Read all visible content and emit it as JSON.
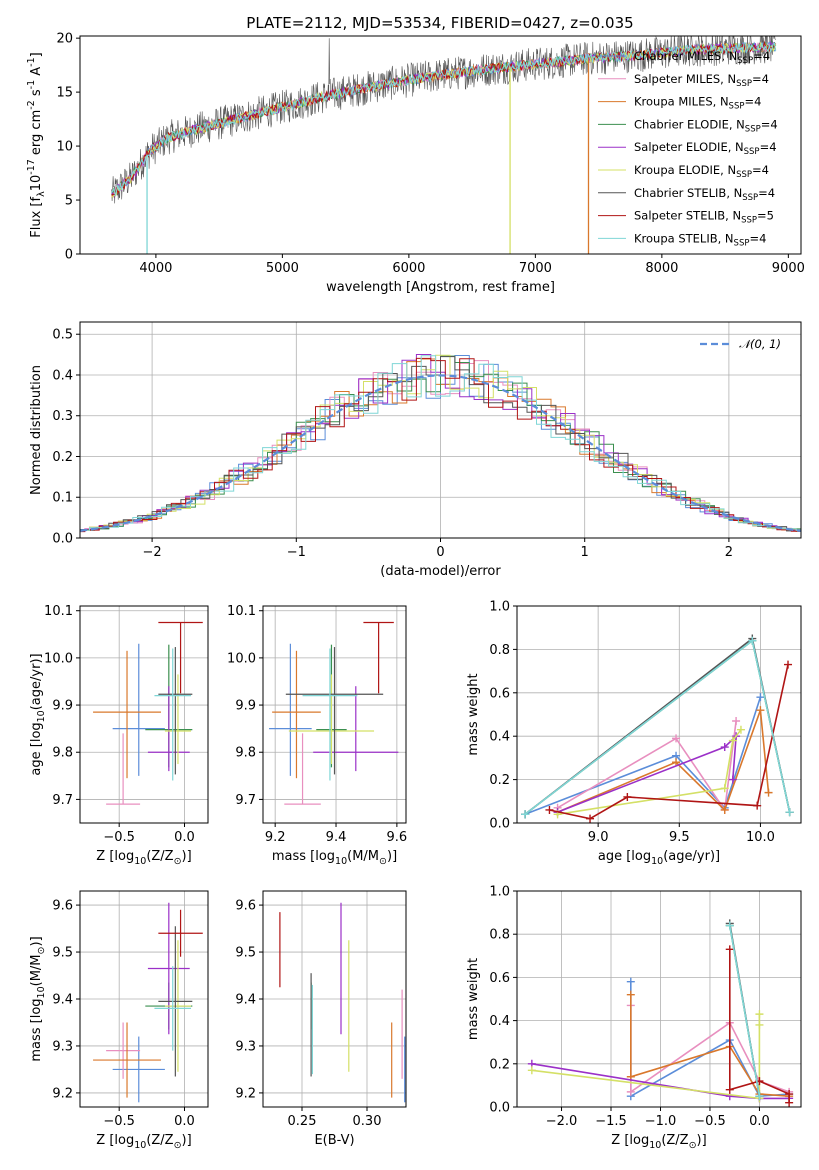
{
  "figure": {
    "title": "PLATE=2112, MJD=53534, FIBERID=0427, z=0.035"
  },
  "series_styles": [
    {
      "name": "Chabrier MILES, N$_{SSP}$=4",
      "legend_main": "Chabrier MILES, N",
      "legend_sub": "SSP",
      "legend_end": "=4",
      "color": "#5b8dd9"
    },
    {
      "name": "Salpeter MILES, N$_{SSP}$=4",
      "legend_main": "Salpeter MILES, N",
      "legend_sub": "SSP",
      "legend_end": "=4",
      "color": "#e88fbf"
    },
    {
      "name": "Kroupa MILES, N$_{SSP}$=4",
      "legend_main": "Kroupa MILES, N",
      "legend_sub": "SSP",
      "legend_end": "=4",
      "color": "#d9782c"
    },
    {
      "name": "Chabrier ELODIE, N$_{SSP}$=4",
      "legend_main": "Chabrier ELODIE, N",
      "legend_sub": "SSP",
      "legend_end": "=4",
      "color": "#3b8f4f"
    },
    {
      "name": "Salpeter ELODIE, N$_{SSP}$=4",
      "legend_main": "Salpeter ELODIE, N",
      "legend_sub": "SSP",
      "legend_end": "=4",
      "color": "#9b30c8"
    },
    {
      "name": "Kroupa ELODIE, N$_{SSP}$=4",
      "legend_main": "Kroupa ELODIE, N",
      "legend_sub": "SSP",
      "legend_end": "=4",
      "color": "#d4e066"
    },
    {
      "name": "Chabrier STELIB, N$_{SSP}$=4",
      "legend_main": "Chabrier STELIB, N",
      "legend_sub": "SSP",
      "legend_end": "=4",
      "color": "#555555"
    },
    {
      "name": "Salpeter STELIB, N$_{SSP}$=5",
      "legend_main": "Salpeter STELIB, N",
      "legend_sub": "SSP",
      "legend_end": "=5",
      "color": "#b01515"
    },
    {
      "name": "Kroupa STELIB, N$_{SSP}$=4",
      "legend_main": "Kroupa STELIB, N",
      "legend_sub": "SSP",
      "legend_end": "=4",
      "color": "#7fd6d6"
    }
  ],
  "chart_data": [
    {
      "id": "spectrum",
      "type": "line",
      "title": "PLATE=2112, MJD=53534, FIBERID=0427, z=0.035",
      "xlabel": "wavelength [Angstrom, rest frame]",
      "ylabel": "Flux [f$_\\lambda$10$^{-17}$ erg cm$^{-2}$ s$^{-1}$ A$^{-1}$]",
      "xlim": [
        3400,
        9100
      ],
      "ylim": [
        0,
        20.2
      ],
      "xticks": [
        4000,
        5000,
        6000,
        7000,
        8000,
        9000
      ],
      "yticks": [
        0,
        5,
        10,
        15,
        20
      ],
      "grid": false,
      "legend": "upper-right",
      "continuum": {
        "x": [
          3650,
          3800,
          3950,
          4100,
          4300,
          4600,
          5000,
          5400,
          5800,
          6200,
          6600,
          7000,
          7400,
          7800,
          8200,
          8600,
          8900
        ],
        "y": [
          5.5,
          7.0,
          9.5,
          10.8,
          11.5,
          12.4,
          13.6,
          14.8,
          15.7,
          16.5,
          17.1,
          17.6,
          18.1,
          18.4,
          18.9,
          19.1,
          19.2
        ]
      },
      "dropouts": [
        {
          "x": 3930,
          "to": 0
        },
        {
          "x": 6800,
          "to": 0
        },
        {
          "x": 7420,
          "to": 0
        }
      ]
    },
    {
      "id": "residuals",
      "type": "histogram",
      "xlabel": "(data-model)/error",
      "ylabel": "Normed distribution",
      "xlim": [
        -2.5,
        2.5
      ],
      "ylim": [
        0,
        0.53
      ],
      "xticks": [
        -2,
        -1,
        0,
        1,
        2
      ],
      "yticks": [
        0.0,
        0.1,
        0.2,
        0.3,
        0.4,
        0.5
      ],
      "grid": true,
      "legend": "upper-right",
      "reference_name": "$\\mathcal{N}(0,1)$",
      "reference_color": "#5b8dd9"
    },
    {
      "id": "age_vs_Z",
      "type": "errorbar",
      "xlabel": "Z [log$_{10}$(Z/Z$_\\odot$)]",
      "ylabel": "age  [log$_{10}$(age/yr)]",
      "xlim": [
        -0.8,
        0.18
      ],
      "ylim": [
        9.65,
        10.11
      ],
      "xticks": [
        -0.5,
        0.0
      ],
      "yticks": [
        9.7,
        9.8,
        9.9,
        10.0,
        10.1
      ],
      "grid": true,
      "points": [
        {
          "x": -0.35,
          "xerr": [
            0.2,
            0.2
          ],
          "y": 9.85,
          "yerr": [
            0.1,
            0.18
          ],
          "series": 0
        },
        {
          "x": -0.47,
          "xerr": [
            0.13,
            0.13
          ],
          "y": 9.69,
          "yerr": [
            0.0,
            0.15
          ],
          "series": 1
        },
        {
          "x": -0.44,
          "xerr": [
            0.26,
            0.26
          ],
          "y": 9.885,
          "yerr": [
            0.14,
            0.13
          ],
          "series": 2
        },
        {
          "x": -0.12,
          "xerr": [
            0.18,
            0.18
          ],
          "y": 9.848,
          "yerr": [
            0.08,
            0.18
          ],
          "series": 3
        },
        {
          "x": -0.12,
          "xerr": [
            0.16,
            0.16
          ],
          "y": 9.8,
          "yerr": [
            0.04,
            0.14
          ],
          "series": 4
        },
        {
          "x": -0.05,
          "xerr": [
            0.1,
            0.1
          ],
          "y": 9.845,
          "yerr": [
            0.07,
            0.12
          ],
          "series": 5
        },
        {
          "x": -0.07,
          "xerr": [
            0.13,
            0.13
          ],
          "y": 9.923,
          "yerr": [
            0.17,
            0.1
          ],
          "series": 6
        },
        {
          "x": -0.03,
          "xerr": [
            0.17,
            0.17
          ],
          "y": 10.075,
          "yerr": [
            0.15,
            0.0
          ],
          "series": 7
        },
        {
          "x": -0.09,
          "xerr": [
            0.14,
            0.14
          ],
          "y": 9.92,
          "yerr": [
            0.18,
            0.1
          ],
          "series": 8
        }
      ]
    },
    {
      "id": "age_vs_mass",
      "type": "errorbar",
      "xlabel": "mass [log$_{10}$(M/M$_\\odot$)]",
      "ylabel": "",
      "xlim": [
        9.16,
        9.63
      ],
      "ylim": [
        9.65,
        10.11
      ],
      "xticks": [
        9.2,
        9.4,
        9.6
      ],
      "yticks": [
        9.7,
        9.8,
        9.9,
        10.0,
        10.1
      ],
      "grid": true,
      "points": [
        {
          "x": 9.25,
          "xerr": [
            0.07,
            0.07
          ],
          "y": 9.85,
          "yerr": [
            0.1,
            0.18
          ],
          "series": 0
        },
        {
          "x": 9.29,
          "xerr": [
            0.06,
            0.06
          ],
          "y": 9.69,
          "yerr": [
            0.0,
            0.15
          ],
          "series": 1
        },
        {
          "x": 9.27,
          "xerr": [
            0.08,
            0.08
          ],
          "y": 9.885,
          "yerr": [
            0.14,
            0.13
          ],
          "series": 2
        },
        {
          "x": 9.385,
          "xerr": [
            0.05,
            0.05
          ],
          "y": 9.848,
          "yerr": [
            0.08,
            0.18
          ],
          "series": 3
        },
        {
          "x": 9.465,
          "xerr": [
            0.14,
            0.14
          ],
          "y": 9.8,
          "yerr": [
            0.04,
            0.14
          ],
          "series": 4
        },
        {
          "x": 9.385,
          "xerr": [
            0.14,
            0.14
          ],
          "y": 9.845,
          "yerr": [
            0.07,
            0.12
          ],
          "series": 5
        },
        {
          "x": 9.395,
          "xerr": [
            0.16,
            0.16
          ],
          "y": 9.923,
          "yerr": [
            0.17,
            0.1
          ],
          "series": 6
        },
        {
          "x": 9.54,
          "xerr": [
            0.05,
            0.05
          ],
          "y": 10.075,
          "yerr": [
            0.15,
            0.0
          ],
          "series": 7
        },
        {
          "x": 9.38,
          "xerr": [
            0.09,
            0.09
          ],
          "y": 9.92,
          "yerr": [
            0.18,
            0.1
          ],
          "series": 8
        }
      ]
    },
    {
      "id": "massweight_vs_age",
      "type": "line",
      "xlabel": "age  [log$_{10}$(age/yr)]",
      "ylabel": "mass weight",
      "xlim": [
        8.5,
        10.25
      ],
      "ylim": [
        0,
        1.0
      ],
      "xticks": [
        9.0,
        9.5,
        10.0
      ],
      "yticks": [
        0.0,
        0.2,
        0.4,
        0.6,
        0.8,
        1.0
      ],
      "grid": true,
      "series": [
        {
          "series": 0,
          "x": [
            8.55,
            9.48,
            9.78,
            10.0
          ],
          "y": [
            0.04,
            0.31,
            0.07,
            0.58
          ]
        },
        {
          "series": 1,
          "x": [
            8.75,
            9.48,
            9.78,
            9.85
          ],
          "y": [
            0.07,
            0.39,
            0.06,
            0.47
          ]
        },
        {
          "series": 2,
          "x": [
            8.75,
            9.48,
            9.78,
            10.0,
            10.05
          ],
          "y": [
            0.05,
            0.28,
            0.06,
            0.52,
            0.14
          ]
        },
        {
          "series": 3,
          "x": [
            8.55,
            9.95,
            10.18
          ],
          "y": [
            0.04,
            0.84,
            0.05
          ]
        },
        {
          "series": 4,
          "x": [
            8.75,
            9.78,
            9.85,
            9.83
          ],
          "y": [
            0.05,
            0.35,
            0.4,
            0.2
          ]
        },
        {
          "series": 5,
          "x": [
            8.75,
            9.78,
            9.83,
            9.88
          ],
          "y": [
            0.04,
            0.16,
            0.38,
            0.43
          ]
        },
        {
          "series": 6,
          "x": [
            8.55,
            9.95,
            10.18
          ],
          "y": [
            0.04,
            0.85,
            0.05
          ]
        },
        {
          "series": 7,
          "x": [
            8.7,
            8.95,
            9.18,
            9.98,
            10.17
          ],
          "y": [
            0.06,
            0.02,
            0.12,
            0.08,
            0.73
          ]
        },
        {
          "series": 8,
          "x": [
            8.55,
            9.95,
            10.18
          ],
          "y": [
            0.04,
            0.84,
            0.05
          ]
        }
      ]
    },
    {
      "id": "mass_vs_Z",
      "type": "errorbar",
      "xlabel": "Z [log$_{10}$(Z/Z$_\\odot$)]",
      "ylabel": "mass [log$_{10}$(M/M$_\\odot$)]",
      "xlim": [
        -0.8,
        0.18
      ],
      "ylim": [
        9.17,
        9.63
      ],
      "xticks": [
        -0.5,
        0.0
      ],
      "yticks": [
        9.2,
        9.3,
        9.4,
        9.5,
        9.6
      ],
      "grid": true,
      "points": [
        {
          "x": -0.35,
          "xerr": [
            0.2,
            0.2
          ],
          "y": 9.25,
          "yerr": [
            0.07,
            0.07
          ],
          "series": 0
        },
        {
          "x": -0.47,
          "xerr": [
            0.13,
            0.13
          ],
          "y": 9.29,
          "yerr": [
            0.06,
            0.06
          ],
          "series": 1
        },
        {
          "x": -0.44,
          "xerr": [
            0.26,
            0.26
          ],
          "y": 9.27,
          "yerr": [
            0.08,
            0.08
          ],
          "series": 2
        },
        {
          "x": -0.12,
          "xerr": [
            0.18,
            0.18
          ],
          "y": 9.385,
          "yerr": [
            0.05,
            0.05
          ],
          "series": 3
        },
        {
          "x": -0.12,
          "xerr": [
            0.16,
            0.16
          ],
          "y": 9.465,
          "yerr": [
            0.14,
            0.14
          ],
          "series": 4
        },
        {
          "x": -0.05,
          "xerr": [
            0.1,
            0.1
          ],
          "y": 9.385,
          "yerr": [
            0.14,
            0.14
          ],
          "series": 5
        },
        {
          "x": -0.07,
          "xerr": [
            0.13,
            0.13
          ],
          "y": 9.395,
          "yerr": [
            0.16,
            0.16
          ],
          "series": 6
        },
        {
          "x": -0.03,
          "xerr": [
            0.17,
            0.17
          ],
          "y": 9.54,
          "yerr": [
            0.05,
            0.05
          ],
          "series": 7
        },
        {
          "x": -0.09,
          "xerr": [
            0.14,
            0.14
          ],
          "y": 9.38,
          "yerr": [
            0.09,
            0.09
          ],
          "series": 8
        }
      ]
    },
    {
      "id": "mass_vs_ebv",
      "type": "errorbar",
      "xlabel": "E(B-V)",
      "ylabel": "",
      "xlim": [
        0.22,
        0.33
      ],
      "ylim": [
        9.17,
        9.63
      ],
      "xticks": [
        0.25,
        0.3
      ],
      "yticks": [
        9.2,
        9.3,
        9.4,
        9.5,
        9.6
      ],
      "grid": true,
      "points": [
        {
          "x": 0.329,
          "y": 9.25,
          "yerr": [
            0.07,
            0.07
          ],
          "series": 0
        },
        {
          "x": 0.327,
          "y": 9.29,
          "yerr": [
            0.06,
            0.13
          ],
          "series": 1
        },
        {
          "x": 0.319,
          "y": 9.27,
          "yerr": [
            0.08,
            0.08
          ],
          "series": 2
        },
        {
          "x": 0.257,
          "y": 9.385,
          "yerr": [
            0.05,
            0.05
          ],
          "series": 3
        },
        {
          "x": 0.28,
          "y": 9.465,
          "yerr": [
            0.14,
            0.14
          ],
          "series": 4
        },
        {
          "x": 0.286,
          "y": 9.385,
          "yerr": [
            0.14,
            0.14
          ],
          "series": 5
        },
        {
          "x": 0.257,
          "y": 9.345,
          "yerr": [
            0.11,
            0.11
          ],
          "series": 6
        },
        {
          "x": 0.233,
          "y": 9.505,
          "yerr": [
            0.08,
            0.08
          ],
          "series": 7
        },
        {
          "x": 0.258,
          "y": 9.33,
          "yerr": [
            0.09,
            0.1
          ],
          "series": 8
        }
      ]
    },
    {
      "id": "massweight_vs_Z",
      "type": "line",
      "xlabel": "Z [log$_{10}$(Z/Z$_\\odot$)]",
      "ylabel": "mass weight",
      "xlim": [
        -2.45,
        0.42
      ],
      "ylim": [
        0,
        1.0
      ],
      "xticks": [
        -2.0,
        -1.5,
        -1.0,
        -0.5,
        0.0
      ],
      "yticks": [
        0.0,
        0.2,
        0.4,
        0.6,
        0.8,
        1.0
      ],
      "grid": true,
      "series": [
        {
          "series": 0,
          "x": [
            -1.3,
            -1.3,
            -0.3,
            0.0,
            0.3
          ],
          "y": [
            0.58,
            0.05,
            0.31,
            0.05,
            0.06
          ]
        },
        {
          "series": 1,
          "x": [
            -1.3,
            -1.3,
            -0.3,
            0.0,
            0.3
          ],
          "y": [
            0.47,
            0.07,
            0.39,
            0.12,
            0.07
          ]
        },
        {
          "series": 2,
          "x": [
            -1.3,
            -1.3,
            -0.3,
            0.0,
            0.3
          ],
          "y": [
            0.52,
            0.14,
            0.28,
            0.06,
            0.05
          ]
        },
        {
          "series": 3,
          "x": [
            -0.3,
            0.0
          ],
          "y": [
            0.84,
            0.05
          ]
        },
        {
          "series": 4,
          "x": [
            -2.3,
            -0.3,
            0.0,
            0.3
          ],
          "y": [
            0.2,
            0.05,
            0.04,
            0.04
          ]
        },
        {
          "series": 5,
          "x": [
            -2.3,
            0.0,
            0.0,
            0.0
          ],
          "y": [
            0.17,
            0.04,
            0.38,
            0.43
          ]
        },
        {
          "series": 6,
          "x": [
            -0.3,
            0.0
          ],
          "y": [
            0.85,
            0.05
          ]
        },
        {
          "series": 7,
          "x": [
            -0.3,
            -0.3,
            0.0,
            0.3,
            0.3
          ],
          "y": [
            0.73,
            0.08,
            0.12,
            0.06,
            0.02
          ]
        },
        {
          "series": 8,
          "x": [
            -0.3,
            0.0
          ],
          "y": [
            0.84,
            0.05
          ]
        }
      ]
    }
  ]
}
